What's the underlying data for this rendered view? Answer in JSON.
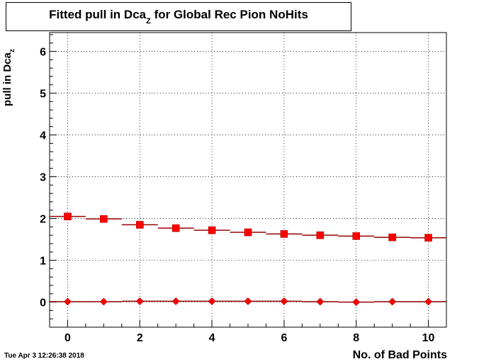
{
  "title": {
    "main": "Fitted pull in Dca",
    "sub": "Z",
    "rest": "for Global Rec Pion NoHits"
  },
  "axes": {
    "ylabel_main": "pull in Dca",
    "ylabel_sub": "z",
    "xlabel": "No. of Bad Points"
  },
  "timestamp": "Tue Apr  3 12:26:38 2018",
  "chart_data": {
    "type": "scatter",
    "x_range": [
      -0.5,
      10.5
    ],
    "y_range": [
      -0.6,
      6.45
    ],
    "x_ticks": [
      0,
      2,
      4,
      6,
      8,
      10
    ],
    "y_ticks": [
      0,
      1,
      2,
      3,
      4,
      5,
      6
    ],
    "grid": true,
    "legend": "none",
    "x": [
      0,
      1,
      2,
      3,
      4,
      5,
      6,
      7,
      8,
      9,
      10
    ],
    "series": [
      {
        "marker": "square",
        "color": "#ff0000",
        "line_color": "#990000",
        "values": [
          2.05,
          1.99,
          1.85,
          1.77,
          1.72,
          1.67,
          1.63,
          1.6,
          1.58,
          1.55,
          1.54
        ]
      },
      {
        "marker": "diamond",
        "color": "#ff0000",
        "line_color": "#990000",
        "values": [
          0.01,
          0.01,
          0.02,
          0.02,
          0.02,
          0.02,
          0.02,
          0.01,
          0.0,
          0.01,
          0.01
        ]
      }
    ]
  }
}
